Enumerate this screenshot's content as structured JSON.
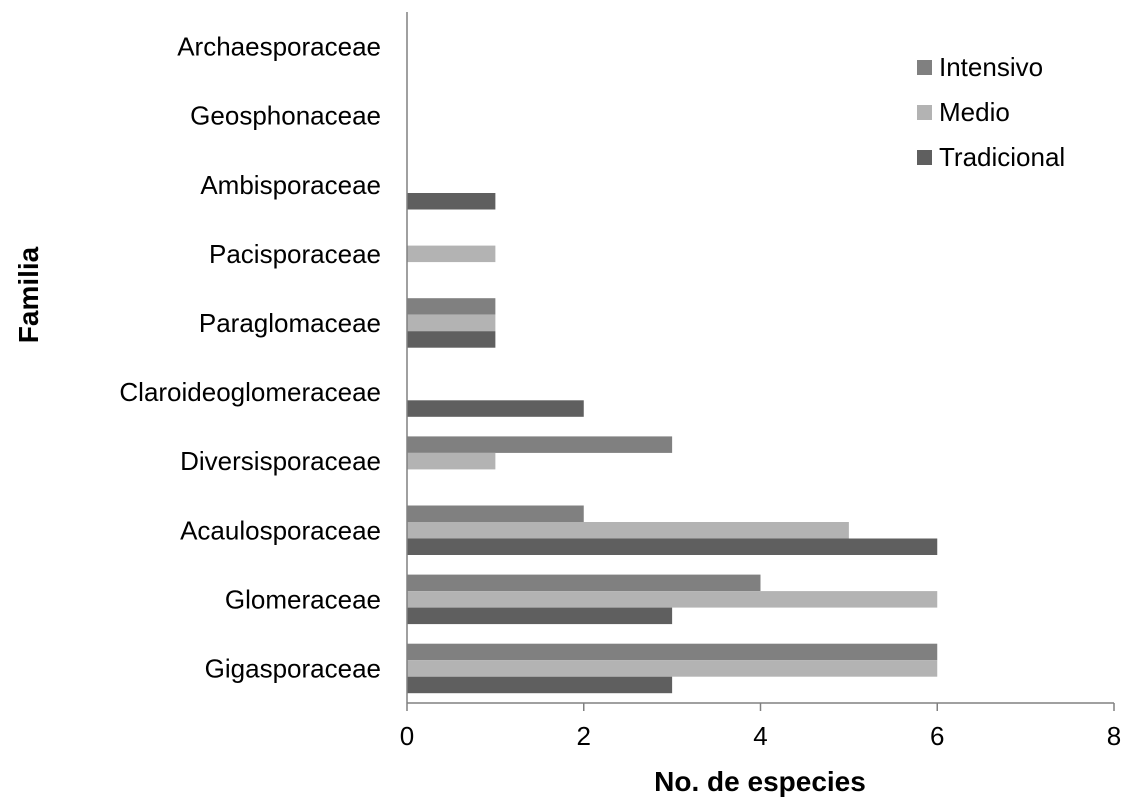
{
  "chart_data": {
    "type": "bar",
    "orientation": "horizontal",
    "categories": [
      "Archaesporaceae",
      "Geosphonaceae",
      "Ambisporaceae",
      "Pacisporaceae",
      "Paraglomaceae",
      "Claroideoglomeraceae",
      "Diversisporaceae",
      "Acaulosporaceae",
      "Glomeraceae",
      "Gigasporaceae"
    ],
    "series": [
      {
        "name": "Intensivo",
        "color": "#808080",
        "values": [
          0,
          0,
          0,
          0,
          1,
          0,
          3,
          2,
          4,
          6
        ]
      },
      {
        "name": "Medio",
        "color": "#b3b3b3",
        "values": [
          0,
          0,
          0,
          1,
          1,
          0,
          1,
          5,
          6,
          6
        ]
      },
      {
        "name": "Tradicional",
        "color": "#5f5f5f",
        "values": [
          0,
          0,
          1,
          0,
          1,
          2,
          0,
          6,
          3,
          3
        ]
      }
    ],
    "xlabel": "No. de especies",
    "ylabel": "Familia",
    "xlim": [
      0,
      8
    ],
    "xticks": [
      0,
      2,
      4,
      6,
      8
    ],
    "grid": false,
    "legend_position": "top-right"
  }
}
